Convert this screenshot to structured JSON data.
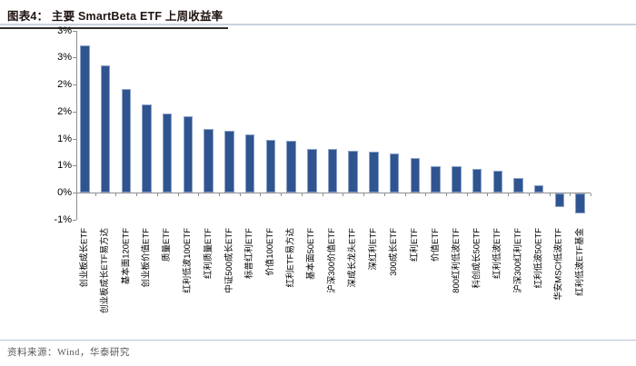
{
  "header": {
    "title": "图表4： 主要 SmartBeta ETF 上周收益率"
  },
  "footer": {
    "source": "资料来源：Wind，华泰研究"
  },
  "colors": {
    "bar_fill": "#2F5490",
    "bar_border": "#8CA3C9",
    "axis": "#8f8f8f",
    "divider_light": "#c8d3df",
    "title_underline": "#2f2f2f",
    "title_text": "#1f1412",
    "source_text": "#595959"
  },
  "chart_data": {
    "type": "bar",
    "title": "主要 SmartBeta ETF 上周收益率",
    "unit": "%",
    "grid": false,
    "legend": false,
    "ylim": [
      -0.5,
      3.0
    ],
    "ytick_values": [
      3.0,
      2.5,
      2.0,
      1.5,
      1.0,
      0.5,
      0.0,
      -0.5
    ],
    "ytick_labels": [
      "3%",
      "3%",
      "2%",
      "2%",
      "1%",
      "1%",
      "0%",
      "-1%"
    ],
    "categories": [
      "创业板成长ETF",
      "创业板成长ETF易方达",
      "基本面120ETF",
      "创业板价值ETF",
      "质量ETF",
      "红利低波100ETF",
      "红利质量ETF",
      "中证500成长ETF",
      "标普红利ETF",
      "价值100ETF",
      "红利ETF易方达",
      "基本面50ETF",
      "沪深300价值ETF",
      "深成长龙头ETF",
      "深红利ETF",
      "300成长ETF",
      "红利ETF",
      "价值ETF",
      "800红利低波ETF",
      "科创成长50ETF",
      "红利低波ETF",
      "沪深300红利ETF",
      "红利低波50ETF",
      "华安MSCI低波ETF",
      "红利低波ETF基金"
    ],
    "values": [
      2.72,
      2.36,
      1.91,
      1.63,
      1.46,
      1.42,
      1.18,
      1.15,
      1.08,
      0.98,
      0.96,
      0.81,
      0.81,
      0.78,
      0.76,
      0.73,
      0.64,
      0.49,
      0.48,
      0.43,
      0.4,
      0.27,
      0.14,
      -0.25,
      -0.37
    ]
  }
}
